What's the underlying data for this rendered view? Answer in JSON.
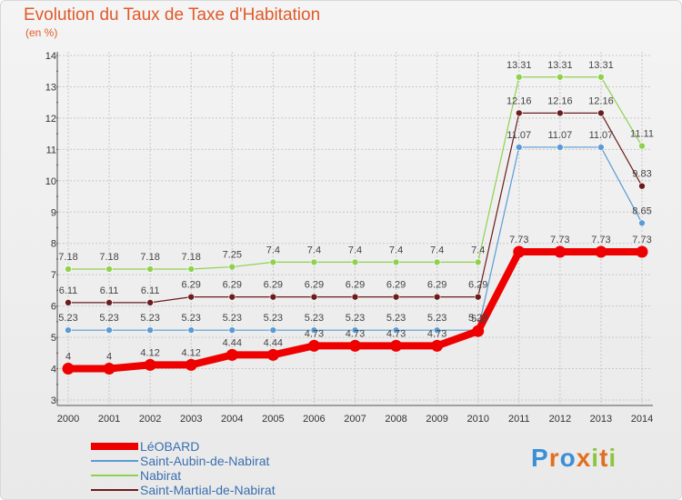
{
  "title": "Evolution du Taux de Taxe d'Habitation",
  "subtitle": "(en %)",
  "logo": {
    "letters": [
      "P",
      "r",
      "o",
      "x",
      "i",
      "t",
      "i"
    ],
    "colors": [
      "#3a8fd8",
      "#e07020",
      "#3a8fd8",
      "#e07020",
      "#8cc63f",
      "#e07020",
      "#8cc63f"
    ]
  },
  "chart_data": {
    "type": "line",
    "title": "Evolution du Taux de Taxe d'Habitation",
    "ylabel": "(en %)",
    "xlabel": "",
    "ylim": [
      3,
      14
    ],
    "yticks": [
      3,
      4,
      5,
      6,
      7,
      8,
      9,
      10,
      11,
      12,
      13,
      14
    ],
    "grid": true,
    "x": [
      "2000",
      "2001",
      "2002",
      "2003",
      "2004",
      "2005",
      "2006",
      "2007",
      "2008",
      "2009",
      "2010",
      "2011",
      "2012",
      "2013",
      "2014"
    ],
    "series": [
      {
        "name": "LéOBARD",
        "color": "#ee0000",
        "values": [
          4,
          4,
          4.12,
          4.12,
          4.44,
          4.44,
          4.73,
          4.73,
          4.73,
          4.73,
          5.2,
          7.73,
          7.73,
          7.73,
          7.73
        ],
        "labels": [
          "4",
          "4",
          "4.12",
          "4.12",
          "4.44",
          "4.44",
          "4.73",
          "4.73",
          "4.73",
          "4.73",
          "5.2",
          "7.73",
          "7.73",
          "7.73",
          "7.73"
        ]
      },
      {
        "name": "Saint-Aubin-de-Nabirat",
        "color": "#5b9bd5",
        "values": [
          5.23,
          5.23,
          5.23,
          5.23,
          5.23,
          5.23,
          5.23,
          5.23,
          5.23,
          5.23,
          5.23,
          11.07,
          11.07,
          11.07,
          8.65
        ],
        "labels": [
          "5.23",
          "5.23",
          "5.23",
          "5.23",
          "5.23",
          "5.23",
          "5.23",
          "5.23",
          "5.23",
          "5.23",
          "5.23",
          "11.07",
          "11.07",
          "11.07",
          "8.65"
        ]
      },
      {
        "name": "Nabirat",
        "color": "#8fd14f",
        "values": [
          7.18,
          7.18,
          7.18,
          7.18,
          7.25,
          7.4,
          7.4,
          7.4,
          7.4,
          7.4,
          7.4,
          13.31,
          13.31,
          13.31,
          11.11
        ],
        "labels": [
          "7.18",
          "7.18",
          "7.18",
          "7.18",
          "7.25",
          "7.4",
          "7.4",
          "7.4",
          "7.4",
          "7.4",
          "7.4",
          "13.31",
          "13.31",
          "13.31",
          "11.11"
        ]
      },
      {
        "name": "Saint-Martial-de-Nabirat",
        "color": "#6b1d1d",
        "values": [
          6.11,
          6.11,
          6.11,
          6.29,
          6.29,
          6.29,
          6.29,
          6.29,
          6.29,
          6.29,
          6.29,
          12.16,
          12.16,
          12.16,
          9.83
        ],
        "labels": [
          "6.11",
          "6.11",
          "6.11",
          "6.29",
          "6.29",
          "6.29",
          "6.29",
          "6.29",
          "6.29",
          "6.29",
          "6.29",
          "12.16",
          "12.16",
          "12.16",
          "9.83"
        ]
      }
    ],
    "legend": "bottom-left"
  }
}
